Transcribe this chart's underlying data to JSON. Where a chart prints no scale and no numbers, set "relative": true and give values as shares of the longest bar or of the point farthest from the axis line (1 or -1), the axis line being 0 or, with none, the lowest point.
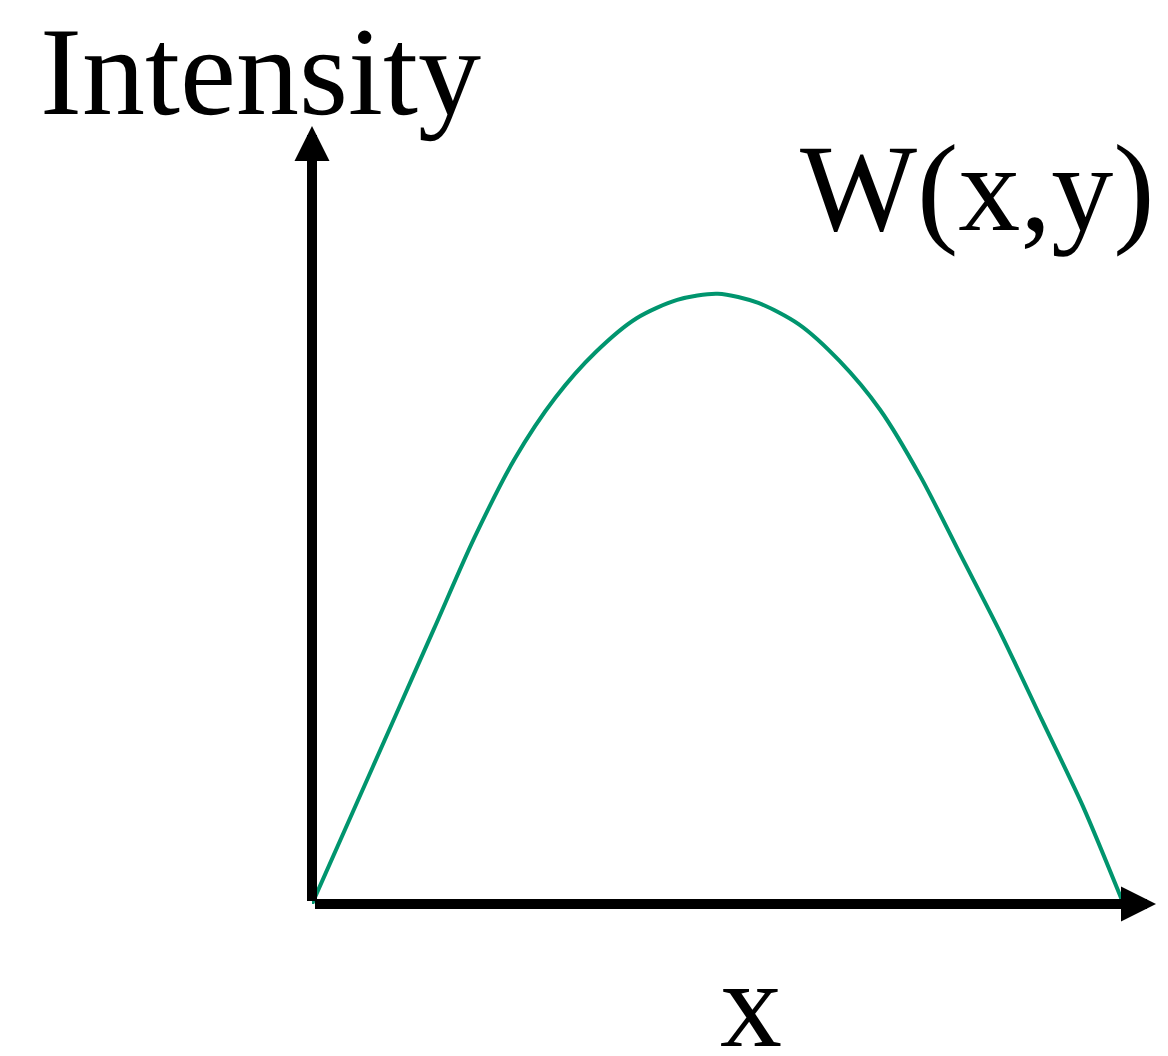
{
  "chart_data": {
    "type": "line",
    "relative": true,
    "xlabel": "x",
    "ylabel": "Intensity",
    "categories": [
      null,
      null,
      null,
      null,
      null,
      null,
      null,
      null,
      null,
      null,
      null,
      null,
      null,
      null,
      null,
      null,
      null,
      null,
      null,
      null,
      null
    ],
    "series": [
      {
        "name": "W(x,y)",
        "color": "#00956e",
        "values": [
          0,
          0.15,
          0.3,
          0.45,
          0.6,
          0.73,
          0.83,
          0.905,
          0.96,
          0.99,
          1,
          0.985,
          0.95,
          0.89,
          0.81,
          0.7,
          0.57,
          0.44,
          0.3,
          0.16,
          0
        ]
      }
    ],
    "legend": false,
    "line_style": "solid"
  }
}
